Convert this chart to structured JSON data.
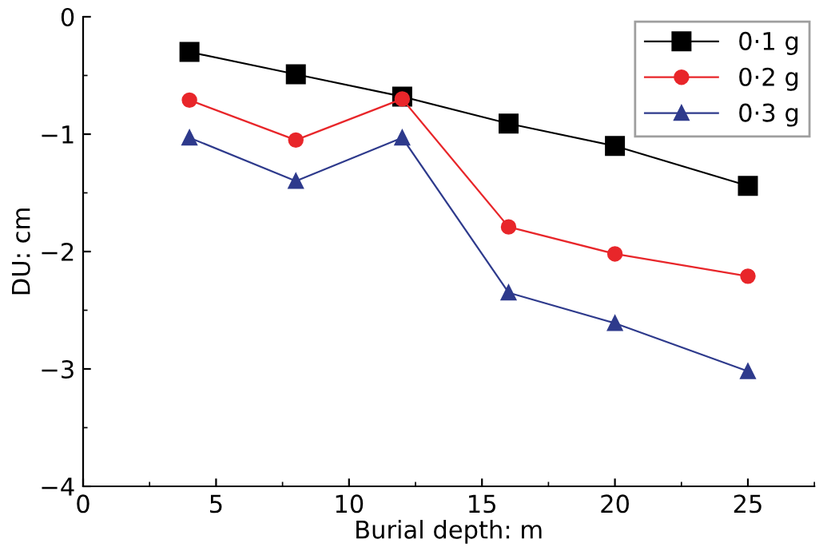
{
  "chart_data": {
    "type": "line",
    "xlabel": "Burial depth: m",
    "ylabel": "DU: cm",
    "x": [
      4,
      8,
      12,
      16,
      20,
      25
    ],
    "series": [
      {
        "name": "0·1 g",
        "color": "#000000",
        "marker": "square",
        "values": [
          -0.3,
          -0.49,
          -0.68,
          -0.91,
          -1.1,
          -1.44
        ]
      },
      {
        "name": "0·2 g",
        "color": "#e8262a",
        "marker": "circle",
        "values": [
          -0.71,
          -1.05,
          -0.7,
          -1.79,
          -2.02,
          -2.21
        ]
      },
      {
        "name": "0·3 g",
        "color": "#2e3a8c",
        "marker": "triangle",
        "values": [
          -1.03,
          -1.4,
          -1.03,
          -2.35,
          -2.61,
          -3.02
        ]
      }
    ],
    "xlim": [
      0,
      27.5
    ],
    "xticks": [
      0,
      5,
      10,
      15,
      20,
      25
    ],
    "ylim": [
      -4,
      0
    ],
    "yticks": [
      -4,
      -3,
      -2,
      -1,
      0
    ],
    "grid": false,
    "legend": "top right",
    "line_style": "solid"
  }
}
